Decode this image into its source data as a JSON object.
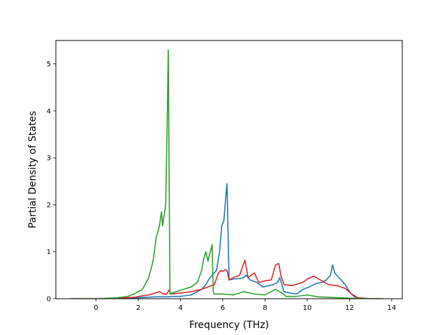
{
  "chart_data": {
    "type": "line",
    "title": "",
    "xlabel": "Frequency (THz)",
    "ylabel": "Partial Density of States",
    "xlim": [
      -1.9,
      14.5
    ],
    "ylim": [
      0,
      5.5
    ],
    "xticks": [
      0,
      2,
      4,
      6,
      8,
      10,
      12,
      14
    ],
    "yticks": [
      0,
      1,
      2,
      3,
      4,
      5
    ],
    "grid": false,
    "legend": "none",
    "series": [
      {
        "color": "#1f77b4",
        "x": [
          -1.2,
          0.0,
          1.0,
          2.0,
          2.8,
          3.4,
          3.6,
          4.0,
          4.5,
          5.0,
          5.2,
          5.35,
          5.5,
          5.7,
          5.85,
          5.95,
          6.0,
          6.05,
          6.15,
          6.2,
          6.3,
          6.5,
          6.8,
          7.0,
          7.1,
          7.3,
          7.6,
          7.9,
          8.2,
          8.4,
          8.6,
          8.7,
          8.9,
          9.2,
          9.5,
          9.8,
          10.1,
          10.4,
          10.7,
          10.9,
          11.1,
          11.2,
          11.3,
          11.5,
          11.8,
          12.0,
          12.2,
          12.5,
          13.0,
          13.6
        ],
        "values": [
          0,
          0,
          0,
          0.02,
          0.04,
          0.04,
          0.05,
          0.05,
          0.08,
          0.2,
          0.3,
          0.42,
          0.5,
          0.6,
          1.0,
          1.55,
          1.6,
          1.65,
          2.2,
          2.45,
          0.4,
          0.42,
          0.43,
          0.45,
          0.5,
          0.4,
          0.35,
          0.25,
          0.28,
          0.3,
          0.35,
          0.45,
          0.15,
          0.12,
          0.1,
          0.2,
          0.25,
          0.32,
          0.35,
          0.4,
          0.5,
          0.72,
          0.55,
          0.45,
          0.3,
          0.15,
          0.05,
          0,
          0,
          0
        ]
      },
      {
        "color": "#d62728",
        "x": [
          -1.2,
          0.0,
          1.0,
          1.8,
          2.2,
          2.5,
          2.8,
          3.0,
          3.2,
          3.35,
          3.45,
          3.55,
          4.0,
          4.5,
          4.8,
          5.0,
          5.3,
          5.6,
          5.8,
          5.9,
          6.0,
          6.1,
          6.2,
          6.3,
          6.5,
          6.8,
          6.95,
          7.05,
          7.2,
          7.5,
          7.7,
          8.0,
          8.3,
          8.5,
          8.65,
          8.75,
          8.9,
          9.3,
          9.8,
          10.0,
          10.3,
          10.7,
          11.0,
          11.4,
          11.8,
          12.1,
          12.4,
          13.0,
          13.6
        ],
        "values": [
          0,
          0,
          0.01,
          0.03,
          0.06,
          0.08,
          0.12,
          0.15,
          0.1,
          0.1,
          0.18,
          0.1,
          0.12,
          0.15,
          0.18,
          0.2,
          0.25,
          0.3,
          0.55,
          0.6,
          0.58,
          0.62,
          0.6,
          0.4,
          0.45,
          0.5,
          0.7,
          0.82,
          0.45,
          0.55,
          0.35,
          0.38,
          0.4,
          0.72,
          0.75,
          0.5,
          0.3,
          0.28,
          0.35,
          0.42,
          0.48,
          0.38,
          0.3,
          0.28,
          0.22,
          0.1,
          0.02,
          0,
          0
        ]
      },
      {
        "color": "#2ca02c",
        "x": [
          -1.2,
          0.0,
          1.0,
          1.5,
          1.8,
          2.2,
          2.5,
          2.7,
          2.85,
          3.0,
          3.1,
          3.15,
          3.3,
          3.38,
          3.42,
          3.5,
          3.6,
          4.0,
          4.5,
          4.8,
          5.0,
          5.1,
          5.2,
          5.3,
          5.35,
          5.5,
          5.55,
          5.6,
          6.0,
          6.5,
          7.0,
          7.5,
          8.0,
          8.5,
          8.8,
          9.0,
          9.5,
          10.0,
          10.5,
          11.0,
          12.0,
          13.0,
          13.6
        ],
        "values": [
          0,
          0,
          0.02,
          0.05,
          0.1,
          0.2,
          0.45,
          0.8,
          1.3,
          1.55,
          1.85,
          1.55,
          2.0,
          4.0,
          5.3,
          0.1,
          0.12,
          0.18,
          0.25,
          0.35,
          0.6,
          0.85,
          1.0,
          0.8,
          0.9,
          1.15,
          0.15,
          0.1,
          0.1,
          0.08,
          0.15,
          0.1,
          0.08,
          0.2,
          0.12,
          0.05,
          0.05,
          0.08,
          0.04,
          0.03,
          0.01,
          0,
          0
        ]
      }
    ]
  }
}
